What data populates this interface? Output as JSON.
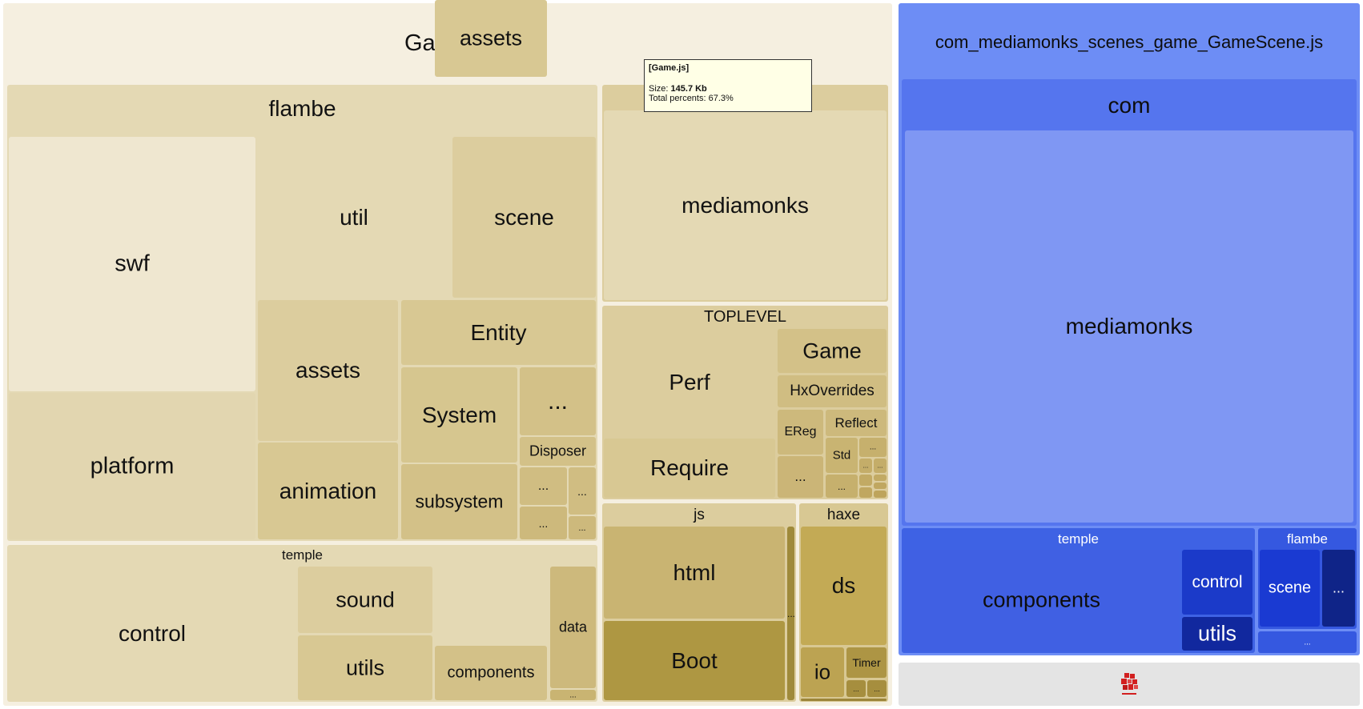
{
  "game_bundle": {
    "title": "Game.js",
    "flambe": {
      "title": "flambe",
      "swf": "swf",
      "platform": "platform",
      "util": "util",
      "scene": "scene",
      "assets": "assets",
      "animation": "animation",
      "entity": "Entity",
      "system": "System",
      "subsystem": "subsystem",
      "disposer": "Disposer",
      "more": "..."
    },
    "temple": {
      "title": "temple",
      "control": "control",
      "sound": "sound",
      "utils": "utils",
      "assets": "assets",
      "components": "components",
      "data": "data",
      "more": "..."
    },
    "mediamonks_group": {
      "mediamonks": "mediamonks"
    },
    "toplevel": {
      "title": "TOPLEVEL",
      "perf": "Perf",
      "require": "Require",
      "game": "Game",
      "hxoverrides": "HxOverrides",
      "ereg": "EReg",
      "reflect": "Reflect",
      "std": "Std",
      "more": "..."
    },
    "js": {
      "title": "js",
      "html": "html",
      "boot": "Boot",
      "more": "..."
    },
    "haxe": {
      "title": "haxe",
      "ds": "ds",
      "io": "io",
      "timer": "Timer",
      "more": "..."
    }
  },
  "scene_bundle": {
    "title": "com_mediamonks_scenes_game_GameScene.js",
    "com": "com",
    "mediamonks": "mediamonks",
    "temple": {
      "title": "temple",
      "components": "components",
      "control": "control",
      "utils": "utils"
    },
    "flambe": {
      "title": "flambe",
      "scene": "scene",
      "more": "..."
    },
    "more": "..."
  },
  "tooltip": {
    "title": "[Game.js]",
    "size_label": "Size:",
    "size_value": "145.7 Kb",
    "percent_text": "Total percents: 67.3%"
  },
  "colors": {
    "game_base": "#f5efe0",
    "game_mid": "#e4d9b4",
    "game_dark": "#c9b472",
    "scene_blue": "#6d8df5",
    "scene_dark": "#1536c9",
    "footer_gray": "#e4e4e4"
  },
  "icons": {
    "footer_logo": "webpack-bundle-analyzer-logo"
  }
}
